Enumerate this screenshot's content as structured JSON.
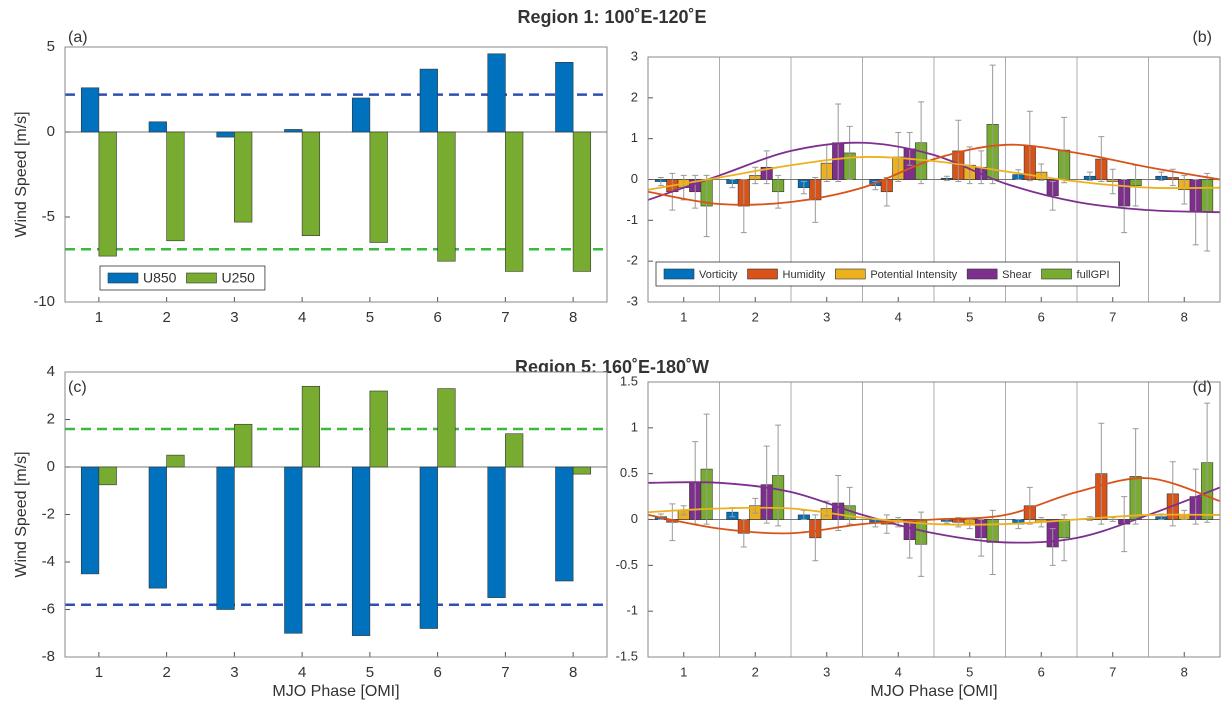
{
  "region_titles": [
    "Region 1: 100˚E-120˚E",
    "Region 5: 160˚E-180˚W"
  ],
  "chart_data": [
    {
      "type": "bar",
      "panel_label": "(a)",
      "ylabel": "Wind Speed [m/s]",
      "categories": [
        1,
        2,
        3,
        4,
        5,
        6,
        7,
        8
      ],
      "xlim": [
        0.5,
        8.5
      ],
      "ylim": [
        -10,
        5
      ],
      "yticks": [
        -10,
        -5,
        0,
        5
      ],
      "legend": "lower left",
      "series": [
        {
          "name": "U850",
          "color": "#0072BD",
          "values": [
            2.6,
            0.6,
            -0.3,
            0.15,
            2.0,
            3.7,
            4.6,
            4.1
          ]
        },
        {
          "name": "U250",
          "color": "#77AC30",
          "values": [
            -7.3,
            -6.4,
            -5.3,
            -6.1,
            -6.5,
            -7.6,
            -8.2,
            -8.2
          ]
        }
      ],
      "hlines": [
        {
          "value": 2.2,
          "color": "#2f4fb5"
        },
        {
          "value": -6.9,
          "color": "#3cb83c"
        }
      ]
    },
    {
      "type": "bar",
      "panel_label": "(b)",
      "categories": [
        1,
        2,
        3,
        4,
        5,
        6,
        7,
        8
      ],
      "xlim": [
        0.5,
        8.5
      ],
      "ylim": [
        -3,
        3
      ],
      "yticks": [
        -3,
        -2,
        -1,
        0,
        1,
        2,
        3
      ],
      "legend": "lower left",
      "series": [
        {
          "name": "Vorticity",
          "color": "#0072BD",
          "values": [
            -0.05,
            -0.1,
            -0.2,
            -0.15,
            0.03,
            0.12,
            0.08,
            0.08
          ],
          "errors": [
            0.1,
            0.1,
            0.15,
            0.1,
            0.05,
            0.12,
            0.1,
            0.1
          ]
        },
        {
          "name": "Humidity",
          "color": "#D95319",
          "values": [
            -0.3,
            -0.65,
            -0.5,
            -0.3,
            0.7,
            0.82,
            0.5,
            0.05
          ],
          "errors": [
            0.45,
            0.65,
            0.55,
            0.35,
            0.75,
            0.85,
            0.55,
            0.2
          ]
        },
        {
          "name": "Potential Intensity",
          "color": "#EDB120",
          "values": [
            -0.2,
            0.1,
            0.4,
            0.55,
            0.35,
            0.18,
            -0.05,
            -0.25
          ],
          "errors": [
            0.3,
            0.2,
            0.45,
            0.6,
            0.45,
            0.2,
            0.3,
            0.35
          ]
        },
        {
          "name": "Shear",
          "color": "#7E2F8E",
          "values": [
            -0.3,
            0.3,
            0.9,
            0.75,
            0.3,
            -0.4,
            -0.65,
            -0.8
          ],
          "errors": [
            0.4,
            0.4,
            0.95,
            0.4,
            0.4,
            0.35,
            0.65,
            0.8
          ]
        },
        {
          "name": "fullGPI",
          "color": "#77AC30",
          "values": [
            -0.65,
            -0.3,
            0.65,
            0.9,
            1.35,
            0.72,
            -0.15,
            -0.8
          ],
          "errors": [
            0.75,
            0.4,
            0.65,
            1.0,
            1.45,
            0.8,
            0.5,
            0.95
          ]
        }
      ],
      "fits": [
        {
          "color": "#7E2F8E",
          "x": [
            0.5,
            1.5,
            2.5,
            3.5,
            4.5,
            5.5,
            6.5,
            7.5,
            8.5
          ],
          "values": [
            -0.5,
            0.1,
            0.7,
            0.9,
            0.6,
            -0.1,
            -0.55,
            -0.75,
            -0.8
          ]
        },
        {
          "color": "#D95319",
          "x": [
            0.5,
            1.5,
            2.5,
            3.5,
            4.5,
            5.5,
            6.5,
            7.5,
            8.5
          ],
          "values": [
            -0.3,
            -0.6,
            -0.55,
            -0.2,
            0.5,
            0.85,
            0.65,
            0.3,
            0.0
          ]
        },
        {
          "color": "#EDB120",
          "x": [
            0.5,
            1.5,
            2.5,
            3.5,
            4.5,
            5.5,
            6.5,
            7.5,
            8.5
          ],
          "values": [
            -0.25,
            0.05,
            0.35,
            0.55,
            0.45,
            0.2,
            -0.05,
            -0.2,
            -0.2
          ]
        }
      ]
    },
    {
      "type": "bar",
      "panel_label": "(c)",
      "ylabel": "Wind Speed [m/s]",
      "xlabel": "MJO Phase [OMI]",
      "categories": [
        1,
        2,
        3,
        4,
        5,
        6,
        7,
        8
      ],
      "xlim": [
        0.5,
        8.5
      ],
      "ylim": [
        -8,
        4
      ],
      "yticks": [
        -8,
        -6,
        -4,
        -2,
        0,
        2,
        4
      ],
      "series": [
        {
          "color": "#0072BD",
          "values": [
            -4.5,
            -5.1,
            -6.0,
            -7.0,
            -7.1,
            -6.8,
            -5.5,
            -4.8
          ]
        },
        {
          "color": "#77AC30",
          "values": [
            -0.75,
            0.5,
            1.8,
            3.4,
            3.2,
            3.3,
            1.4,
            -0.3
          ]
        }
      ],
      "hlines": [
        {
          "value": 1.6,
          "color": "#3cb83c"
        },
        {
          "value": -5.8,
          "color": "#2f4fb5"
        }
      ]
    },
    {
      "type": "bar",
      "panel_label": "(d)",
      "xlabel": "MJO Phase [OMI]",
      "categories": [
        1,
        2,
        3,
        4,
        5,
        6,
        7,
        8
      ],
      "xlim": [
        0.5,
        8.5
      ],
      "ylim": [
        -1.5,
        1.5
      ],
      "yticks": [
        -1.5,
        -1,
        -0.5,
        0,
        0.5,
        1,
        1.5
      ],
      "series": [
        {
          "color": "#0072BD",
          "values": [
            0.03,
            0.08,
            0.05,
            -0.04,
            -0.02,
            -0.05,
            0.01,
            0.03
          ],
          "errors": [
            0.03,
            0.05,
            0.05,
            0.04,
            0.02,
            0.05,
            0.02,
            0.03
          ]
        },
        {
          "color": "#D95319",
          "values": [
            -0.03,
            -0.15,
            -0.2,
            -0.05,
            -0.03,
            0.15,
            0.5,
            0.28
          ],
          "errors": [
            0.2,
            0.15,
            0.25,
            0.1,
            0.05,
            0.2,
            0.55,
            0.35
          ]
        },
        {
          "color": "#EDB120",
          "values": [
            0.1,
            0.15,
            0.12,
            -0.03,
            -0.05,
            -0.03,
            0.0,
            0.05
          ],
          "errors": [
            0.05,
            0.08,
            0.08,
            0.05,
            0.05,
            0.05,
            0.02,
            0.05
          ]
        },
        {
          "color": "#7E2F8E",
          "values": [
            0.4,
            0.38,
            0.18,
            -0.22,
            -0.2,
            -0.3,
            -0.05,
            0.25
          ],
          "errors": [
            0.45,
            0.42,
            0.3,
            0.2,
            0.2,
            0.2,
            0.3,
            0.3
          ]
        },
        {
          "color": "#77AC30",
          "values": [
            0.55,
            0.48,
            0.15,
            -0.27,
            -0.25,
            -0.2,
            0.47,
            0.62
          ],
          "errors": [
            0.6,
            0.55,
            0.2,
            0.35,
            0.35,
            0.25,
            0.52,
            0.65
          ]
        }
      ],
      "fits": [
        {
          "color": "#7E2F8E",
          "x": [
            0.5,
            1.5,
            2.5,
            3.5,
            4.5,
            5.5,
            6.5,
            7.5,
            8.5
          ],
          "values": [
            0.4,
            0.4,
            0.3,
            0.05,
            -0.15,
            -0.25,
            -0.2,
            0.05,
            0.35
          ]
        },
        {
          "color": "#D95319",
          "x": [
            0.5,
            1.5,
            2.5,
            3.5,
            4.5,
            5.5,
            6.5,
            7.5,
            8.5
          ],
          "values": [
            0.05,
            -0.1,
            -0.15,
            -0.05,
            0.0,
            0.05,
            0.3,
            0.45,
            0.2
          ]
        },
        {
          "color": "#EDB120",
          "x": [
            0.5,
            1.5,
            2.5,
            3.5,
            4.5,
            5.5,
            6.5,
            7.5,
            8.5
          ],
          "values": [
            0.08,
            0.12,
            0.12,
            0.02,
            -0.05,
            -0.05,
            0.0,
            0.05,
            0.05
          ]
        }
      ]
    }
  ]
}
